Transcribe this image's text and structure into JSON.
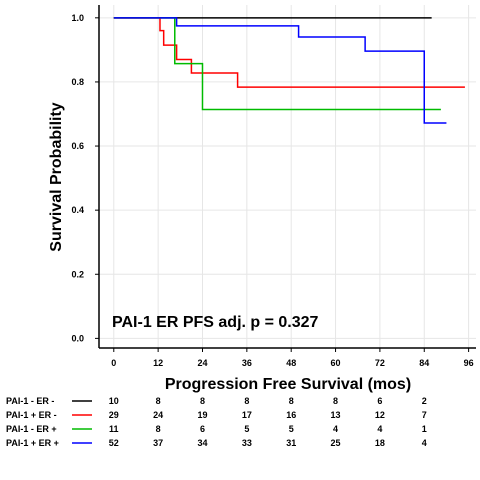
{
  "chart_data": {
    "type": "line",
    "step": true,
    "xlabel": "Progression Free Survival (mos)",
    "ylabel": "Survival Probability",
    "annotation": "PAI-1 ER PFS  adj. p = 0.327",
    "xlim": [
      -4,
      98
    ],
    "ylim": [
      -0.03,
      1.04
    ],
    "xticks": [
      0,
      12,
      24,
      36,
      48,
      60,
      72,
      84,
      96
    ],
    "yticks": [
      0.0,
      0.2,
      0.4,
      0.6,
      0.8,
      1.0
    ],
    "ytick_labels": [
      "0.0",
      "0.2",
      "0.4",
      "0.6",
      "0.8",
      "1.0"
    ],
    "grid": true,
    "series": [
      {
        "name": "PAI-1 - ER -",
        "color": "#000000",
        "x": [
          0,
          86
        ],
        "y": [
          1.0,
          1.0
        ],
        "at_risk": [
          10,
          8,
          8,
          8,
          8,
          8,
          6,
          2
        ]
      },
      {
        "name": "PAI-1 + ER -",
        "color": "#ff0000",
        "x": [
          0,
          12.5,
          13.5,
          17,
          21,
          33.5,
          95
        ],
        "y": [
          1.0,
          0.96,
          0.915,
          0.87,
          0.828,
          0.784,
          0.784
        ],
        "at_risk": [
          29,
          24,
          19,
          17,
          16,
          13,
          12,
          7
        ]
      },
      {
        "name": "PAI-1 - ER +",
        "color": "#00bb00",
        "x": [
          0,
          16.5,
          24,
          88.5
        ],
        "y": [
          1.0,
          0.857,
          0.714,
          0.714
        ],
        "at_risk": [
          11,
          8,
          6,
          5,
          5,
          4,
          4,
          1
        ]
      },
      {
        "name": "PAI-1 + ER +",
        "color": "#0000ff",
        "x": [
          0,
          17,
          50,
          68,
          84,
          90
        ],
        "y": [
          1.0,
          0.975,
          0.94,
          0.896,
          0.672,
          0.672
        ],
        "at_risk": [
          52,
          37,
          34,
          33,
          31,
          25,
          18,
          4
        ]
      }
    ],
    "at_risk_times": [
      0,
      12,
      24,
      36,
      48,
      60,
      72,
      84
    ]
  }
}
